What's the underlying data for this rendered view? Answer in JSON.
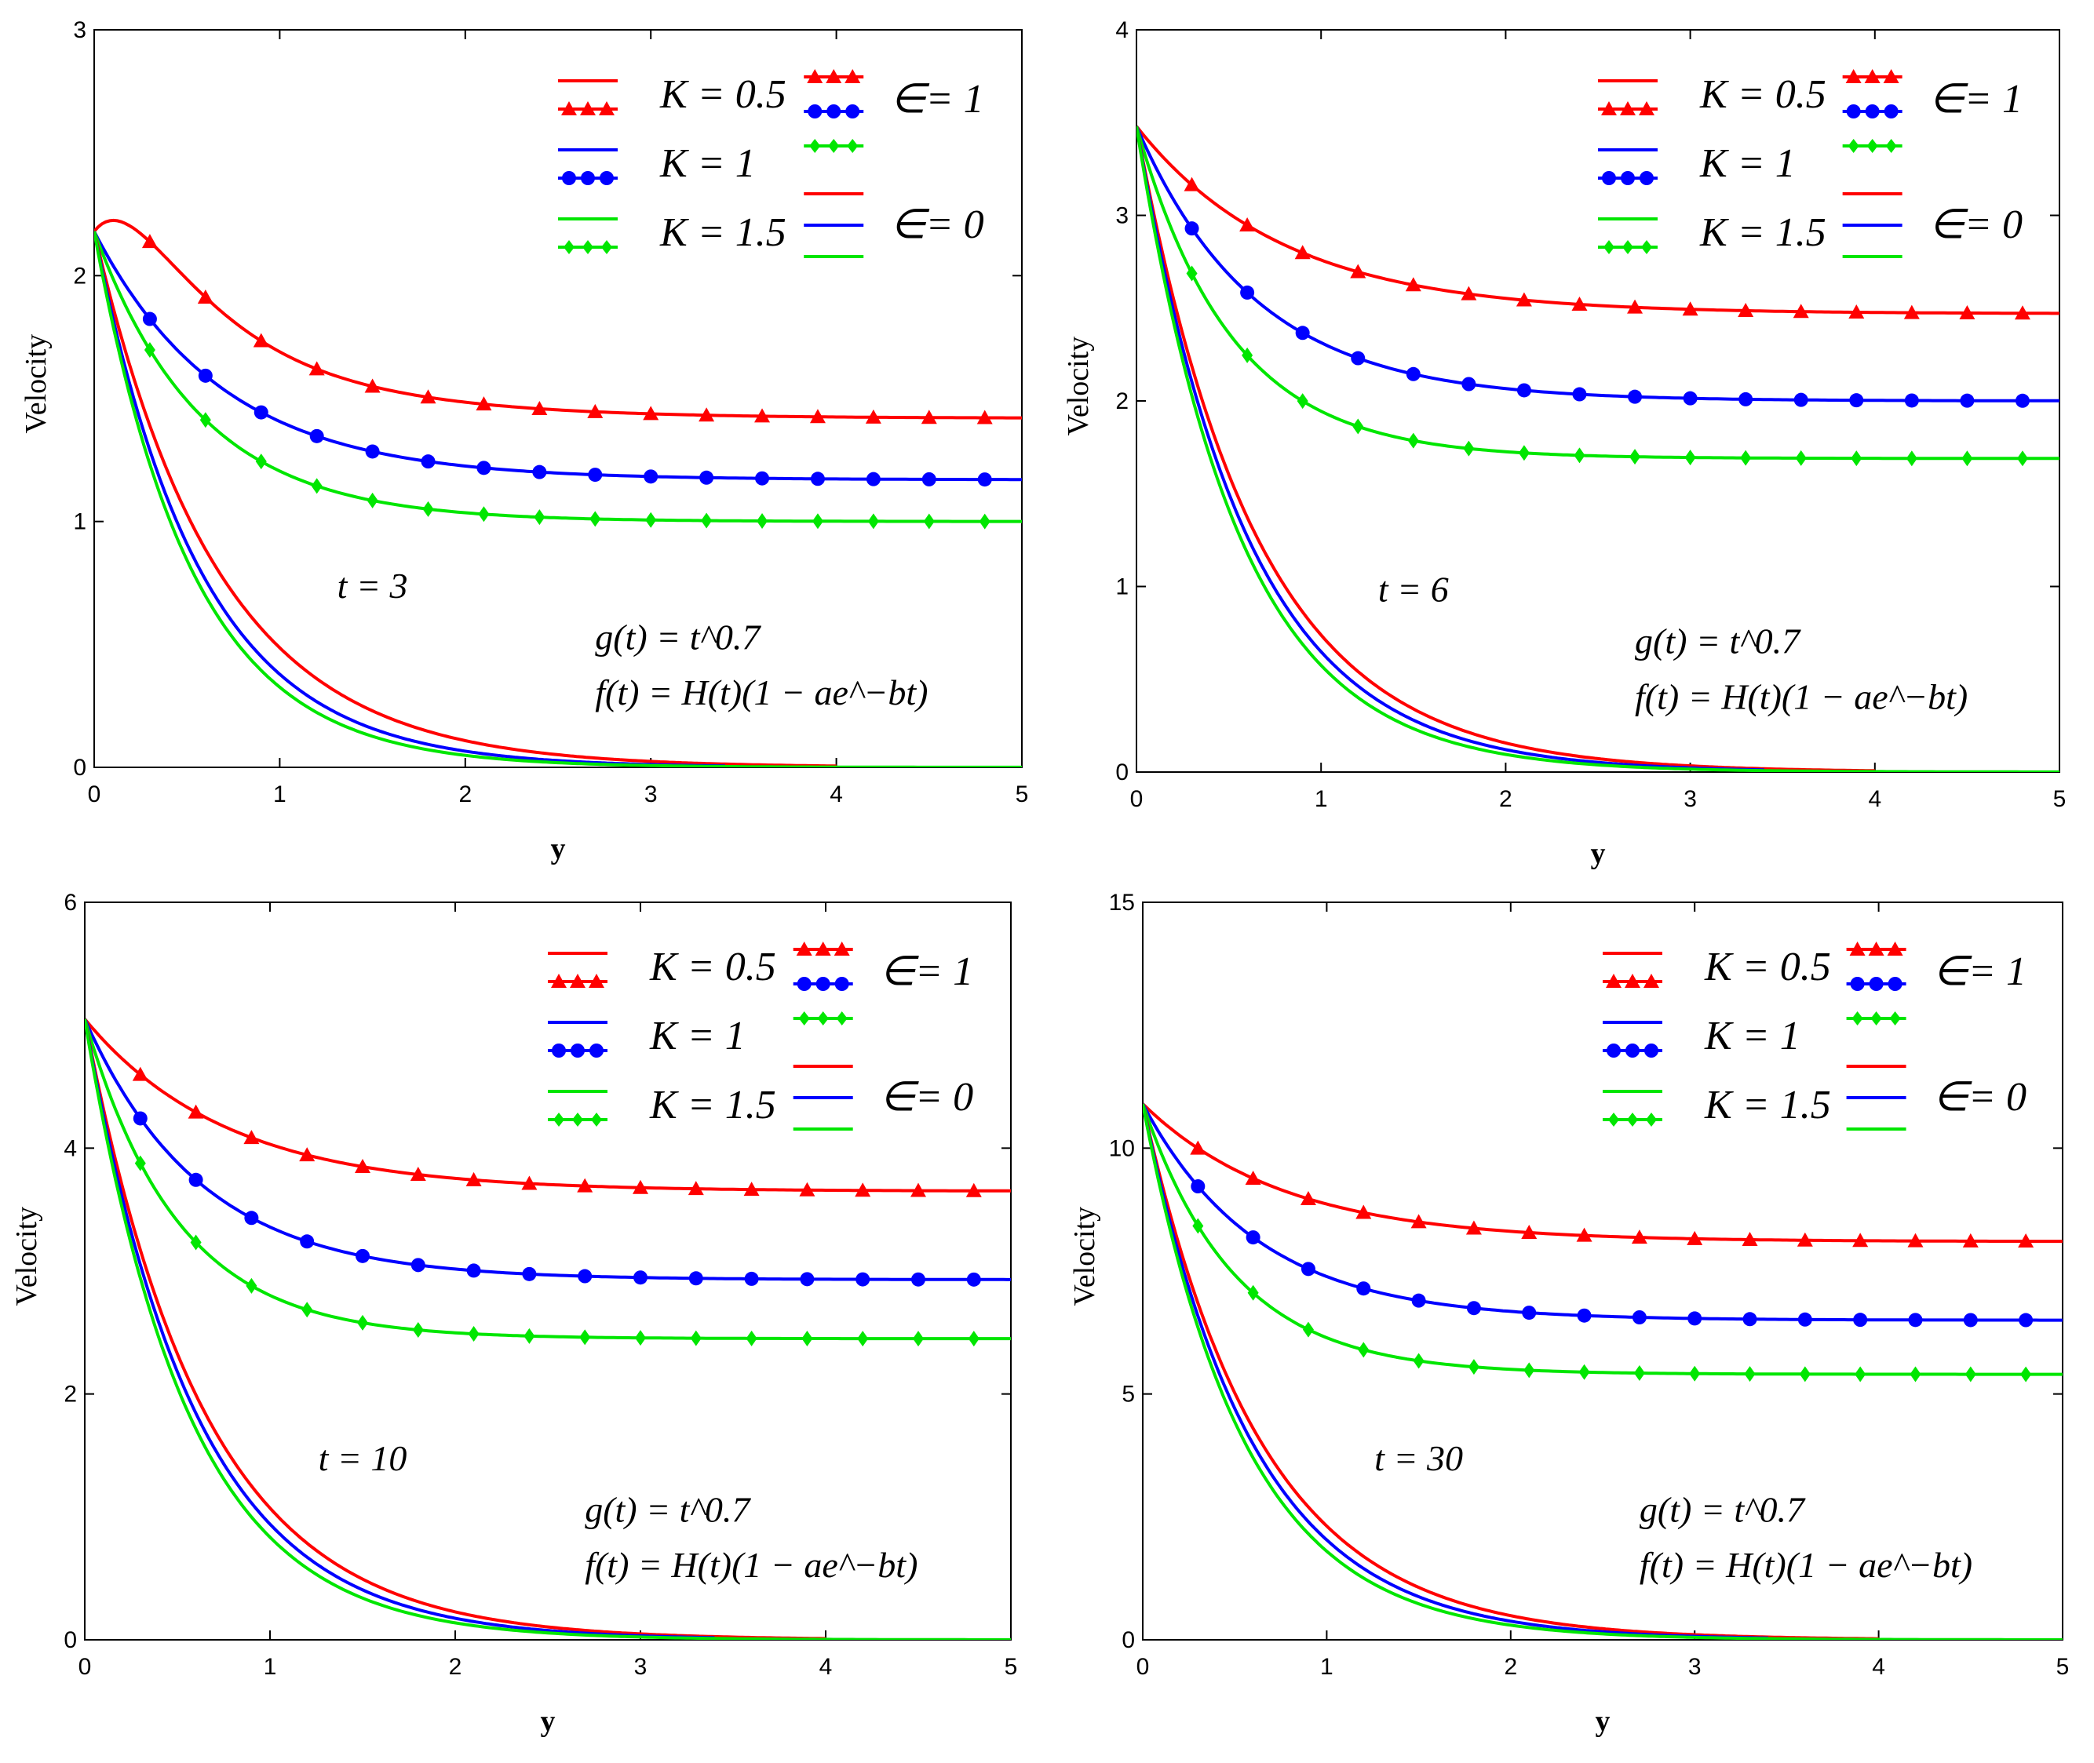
{
  "colors": {
    "red": "#ff0000",
    "blue": "#0000ff",
    "green": "#00e600",
    "axis": "#000000",
    "background": "#ffffff"
  },
  "chart_data": [
    {
      "type": "line",
      "panel": "top-left",
      "xlabel": "y",
      "ylabel": "Velocity",
      "xlim": [
        0,
        5
      ],
      "ylim": [
        0,
        3
      ],
      "xticks": [
        "0",
        "1",
        "2",
        "3",
        "4",
        "5"
      ],
      "yticks": [
        "0",
        "1",
        "2",
        "3"
      ],
      "time_label": "t = 3",
      "g_label": "g(t) = t^0.7",
      "f_label": "f(t) = H(t)(1 − ae^−bt)",
      "legend": [
        "K = 0.5",
        "K = 1",
        "K = 1.5",
        "∈= 1",
        "∈= 0"
      ],
      "series": [
        {
          "name": "K = 0.5, ∈= 1",
          "color": "red",
          "marker": "triangle",
          "start": 2.18,
          "end": 1.42,
          "decay": 1.25,
          "bump": 0.32
        },
        {
          "name": "K = 1, ∈= 1",
          "color": "blue",
          "marker": "circle",
          "start": 2.18,
          "end": 1.17,
          "decay": 1.45,
          "bump": 0
        },
        {
          "name": "K = 1.5, ∈= 1",
          "color": "green",
          "marker": "diamond",
          "start": 2.18,
          "end": 1.0,
          "decay": 1.75,
          "bump": 0
        },
        {
          "name": "K = 0.5, ∈= 0",
          "color": "red",
          "marker": "none",
          "start": 2.18,
          "end": 0,
          "decay": 1.5,
          "bump": 0
        },
        {
          "name": "K = 1, ∈= 0",
          "color": "blue",
          "marker": "none",
          "start": 2.18,
          "end": 0,
          "decay": 1.75,
          "bump": 0
        },
        {
          "name": "K = 1.5, ∈= 0",
          "color": "green",
          "marker": "none",
          "start": 2.18,
          "end": 0,
          "decay": 1.9,
          "bump": 0
        }
      ]
    },
    {
      "type": "line",
      "panel": "top-right",
      "xlabel": "y",
      "ylabel": "Velocity",
      "xlim": [
        0,
        5
      ],
      "ylim": [
        0,
        4
      ],
      "xticks": [
        "0",
        "1",
        "2",
        "3",
        "4",
        "5"
      ],
      "yticks": [
        "0",
        "1",
        "2",
        "3",
        "4"
      ],
      "time_label": "t = 6",
      "g_label": "g(t) = t^0.7",
      "f_label": "f(t) = H(t)(1 − ae^−bt)",
      "legend": [
        "K = 0.5",
        "K = 1",
        "K = 1.5",
        "∈= 1",
        "∈= 0"
      ],
      "series": [
        {
          "name": "K = 0.5, ∈= 1",
          "color": "red",
          "marker": "triangle",
          "start": 3.48,
          "end": 2.47,
          "decay": 1.25,
          "bump": 0
        },
        {
          "name": "K = 1, ∈= 1",
          "color": "blue",
          "marker": "circle",
          "start": 3.48,
          "end": 2.0,
          "decay": 1.55,
          "bump": 0
        },
        {
          "name": "K = 1.5, ∈= 1",
          "color": "green",
          "marker": "diamond",
          "start": 3.48,
          "end": 1.69,
          "decay": 1.95,
          "bump": 0
        },
        {
          "name": "K = 0.5, ∈= 0",
          "color": "red",
          "marker": "none",
          "start": 3.48,
          "end": 0,
          "decay": 1.55,
          "bump": 0
        },
        {
          "name": "K = 1, ∈= 0",
          "color": "blue",
          "marker": "none",
          "start": 3.48,
          "end": 0,
          "decay": 1.68,
          "bump": 0
        },
        {
          "name": "K = 1.5, ∈= 0",
          "color": "green",
          "marker": "none",
          "start": 3.48,
          "end": 0,
          "decay": 1.8,
          "bump": 0
        }
      ]
    },
    {
      "type": "line",
      "panel": "bottom-left",
      "xlabel": "y",
      "ylabel": "Velocity",
      "xlim": [
        0,
        5
      ],
      "ylim": [
        0,
        6
      ],
      "xticks": [
        "0",
        "1",
        "2",
        "3",
        "4",
        "5"
      ],
      "yticks": [
        "0",
        "2",
        "4",
        "6"
      ],
      "time_label": "t = 10",
      "g_label": "g(t) = t^0.7",
      "f_label": "f(t) = H(t)(1 − ae^−bt)",
      "legend": [
        "K = 0.5",
        "K = 1",
        "K = 1.5",
        "∈= 1",
        "∈= 0"
      ],
      "series": [
        {
          "name": "K = 0.5, ∈= 1",
          "color": "red",
          "marker": "triangle",
          "start": 5.05,
          "end": 3.65,
          "decay": 1.3,
          "bump": 0
        },
        {
          "name": "K = 1, ∈= 1",
          "color": "blue",
          "marker": "circle",
          "start": 5.05,
          "end": 2.93,
          "decay": 1.6,
          "bump": 0
        },
        {
          "name": "K = 1.5, ∈= 1",
          "color": "green",
          "marker": "diamond",
          "start": 5.05,
          "end": 2.45,
          "decay": 2.0,
          "bump": 0
        },
        {
          "name": "K = 0.5, ∈= 0",
          "color": "red",
          "marker": "none",
          "start": 5.05,
          "end": 0,
          "decay": 1.55,
          "bump": 0
        },
        {
          "name": "K = 1, ∈= 0",
          "color": "blue",
          "marker": "none",
          "start": 5.05,
          "end": 0,
          "decay": 1.68,
          "bump": 0
        },
        {
          "name": "K = 1.5, ∈= 0",
          "color": "green",
          "marker": "none",
          "start": 5.05,
          "end": 0,
          "decay": 1.8,
          "bump": 0
        }
      ]
    },
    {
      "type": "line",
      "panel": "bottom-right",
      "xlabel": "y",
      "ylabel": "Velocity",
      "xlim": [
        0,
        5
      ],
      "ylim": [
        0,
        15
      ],
      "xticks": [
        "0",
        "1",
        "2",
        "3",
        "4",
        "5"
      ],
      "yticks": [
        "0",
        "5",
        "10",
        "15"
      ],
      "time_label": "t = 30",
      "g_label": "g(t) = t^0.7",
      "f_label": "f(t) = H(t)(1 − ae^−bt)",
      "legend": [
        "K = 0.5",
        "K = 1",
        "K = 1.5",
        "∈= 1",
        "∈= 0"
      ],
      "series": [
        {
          "name": "K = 0.5, ∈= 1",
          "color": "red",
          "marker": "triangle",
          "start": 10.9,
          "end": 8.1,
          "decay": 1.3,
          "bump": 0
        },
        {
          "name": "K = 1, ∈= 1",
          "color": "blue",
          "marker": "circle",
          "start": 10.9,
          "end": 6.5,
          "decay": 1.6,
          "bump": 0
        },
        {
          "name": "K = 1.5, ∈= 1",
          "color": "green",
          "marker": "diamond",
          "start": 10.9,
          "end": 5.4,
          "decay": 2.0,
          "bump": 0
        },
        {
          "name": "K = 0.5, ∈= 0",
          "color": "red",
          "marker": "none",
          "start": 10.9,
          "end": 0,
          "decay": 1.55,
          "bump": 0
        },
        {
          "name": "K = 1, ∈= 0",
          "color": "blue",
          "marker": "none",
          "start": 10.9,
          "end": 0,
          "decay": 1.68,
          "bump": 0
        },
        {
          "name": "K = 1.5, ∈= 0",
          "color": "green",
          "marker": "none",
          "start": 10.9,
          "end": 0,
          "decay": 1.8,
          "bump": 0
        }
      ]
    }
  ]
}
